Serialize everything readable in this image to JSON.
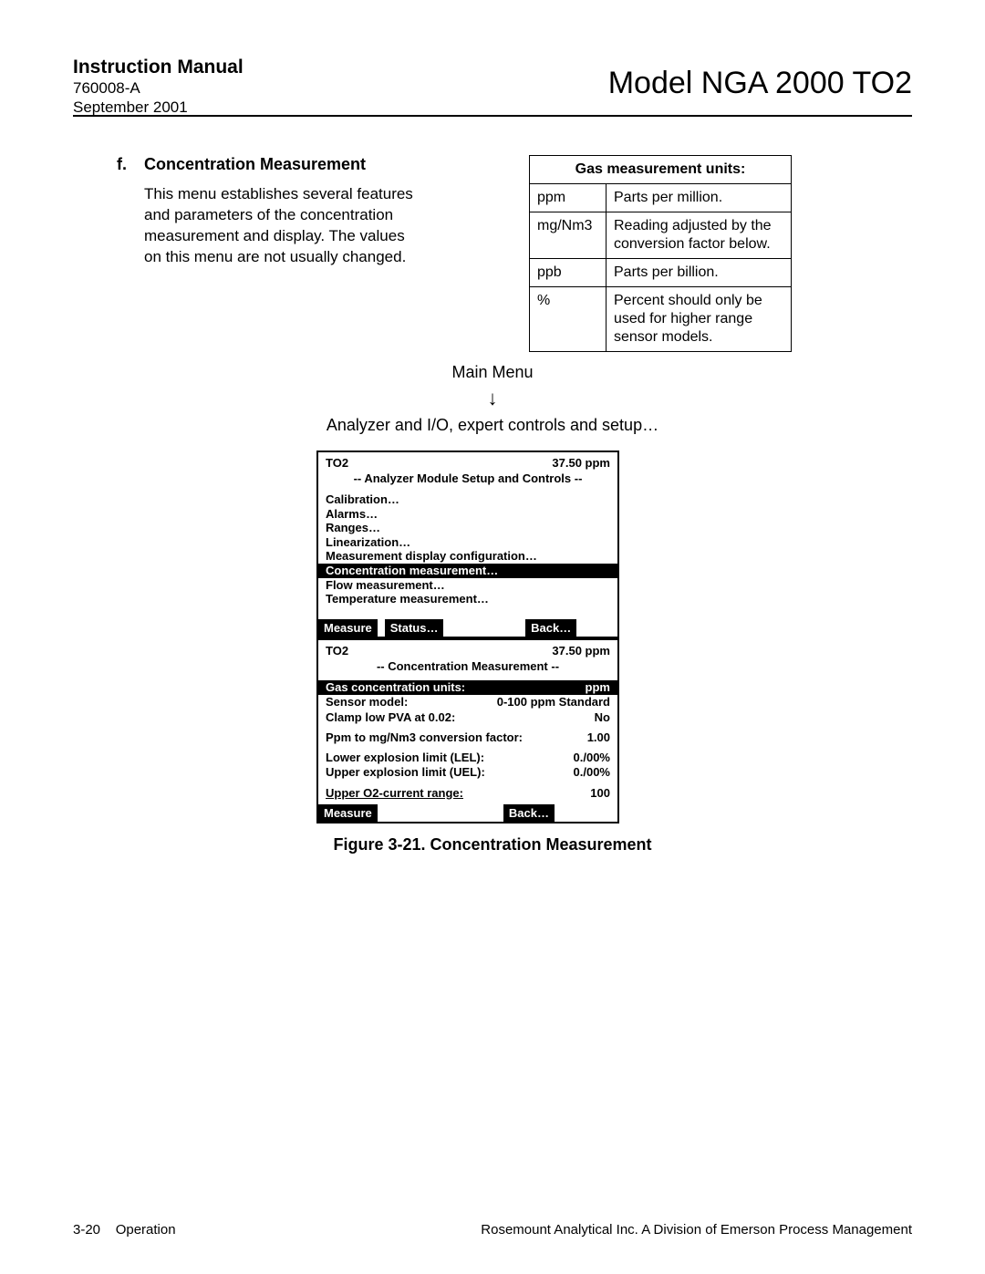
{
  "header": {
    "manual_title": "Instruction Manual",
    "doc_number": "760008-A",
    "date": "September 2001",
    "model": "Model NGA 2000 TO2"
  },
  "section": {
    "letter": "f.",
    "title": "Concentration Measurement",
    "body": "This menu establishes several features and parameters of the concentration measurement and display. The values on this menu are not usually changed."
  },
  "units_table": {
    "title": "Gas measurement units:",
    "rows": [
      {
        "k": "ppm",
        "v": "Parts per million."
      },
      {
        "k": "mg/Nm3",
        "v": "Reading adjusted by the conversion factor below."
      },
      {
        "k": "ppb",
        "v": "Parts per billion."
      },
      {
        "k": "%",
        "v": "Percent should only be used for higher range sensor models."
      }
    ]
  },
  "nav": {
    "line1": "Main Menu",
    "arrow": "↓",
    "line2": "Analyzer and I/O, expert controls and setup…"
  },
  "screen1": {
    "tag": "TO2",
    "reading": "37.50 ppm",
    "title": "-- Analyzer Module Setup and Controls --",
    "items": [
      "Calibration…",
      "Alarms…",
      "Ranges…",
      "Linearization…",
      "Measurement display configuration…"
    ],
    "highlight": "Concentration measurement…",
    "items2": [
      "Flow measurement…",
      "Temperature measurement…"
    ],
    "btn_measure": "Measure",
    "btn_status": "Status…",
    "btn_back": "Back…"
  },
  "screen2": {
    "tag": "TO2",
    "reading": "37.50 ppm",
    "title": "-- Concentration Measurement --",
    "hl_label": "Gas concentration units:",
    "hl_value": "ppm",
    "rows1": [
      {
        "l": "Sensor model:",
        "v": "0-100 ppm Standard"
      },
      {
        "l": "Clamp low PVA at 0.02:",
        "v": "No"
      }
    ],
    "rows2": [
      {
        "l": "Ppm to mg/Nm3 conversion factor:",
        "v": "1.00"
      }
    ],
    "rows3": [
      {
        "l": "Lower explosion limit (LEL):",
        "v": "0./00%"
      },
      {
        "l": "Upper explosion limit (UEL):",
        "v": "0./00%"
      }
    ],
    "rows4": [
      {
        "l": "Upper O2-current range:",
        "v": "100",
        "u": true
      }
    ],
    "btn_measure": "Measure",
    "btn_back": "Back…"
  },
  "figure_caption": "Figure 3-21.  Concentration Measurement",
  "footer": {
    "left_page": "3-20",
    "left_section": "Operation",
    "right": "Rosemount Analytical Inc.    A Division of Emerson Process Management"
  }
}
